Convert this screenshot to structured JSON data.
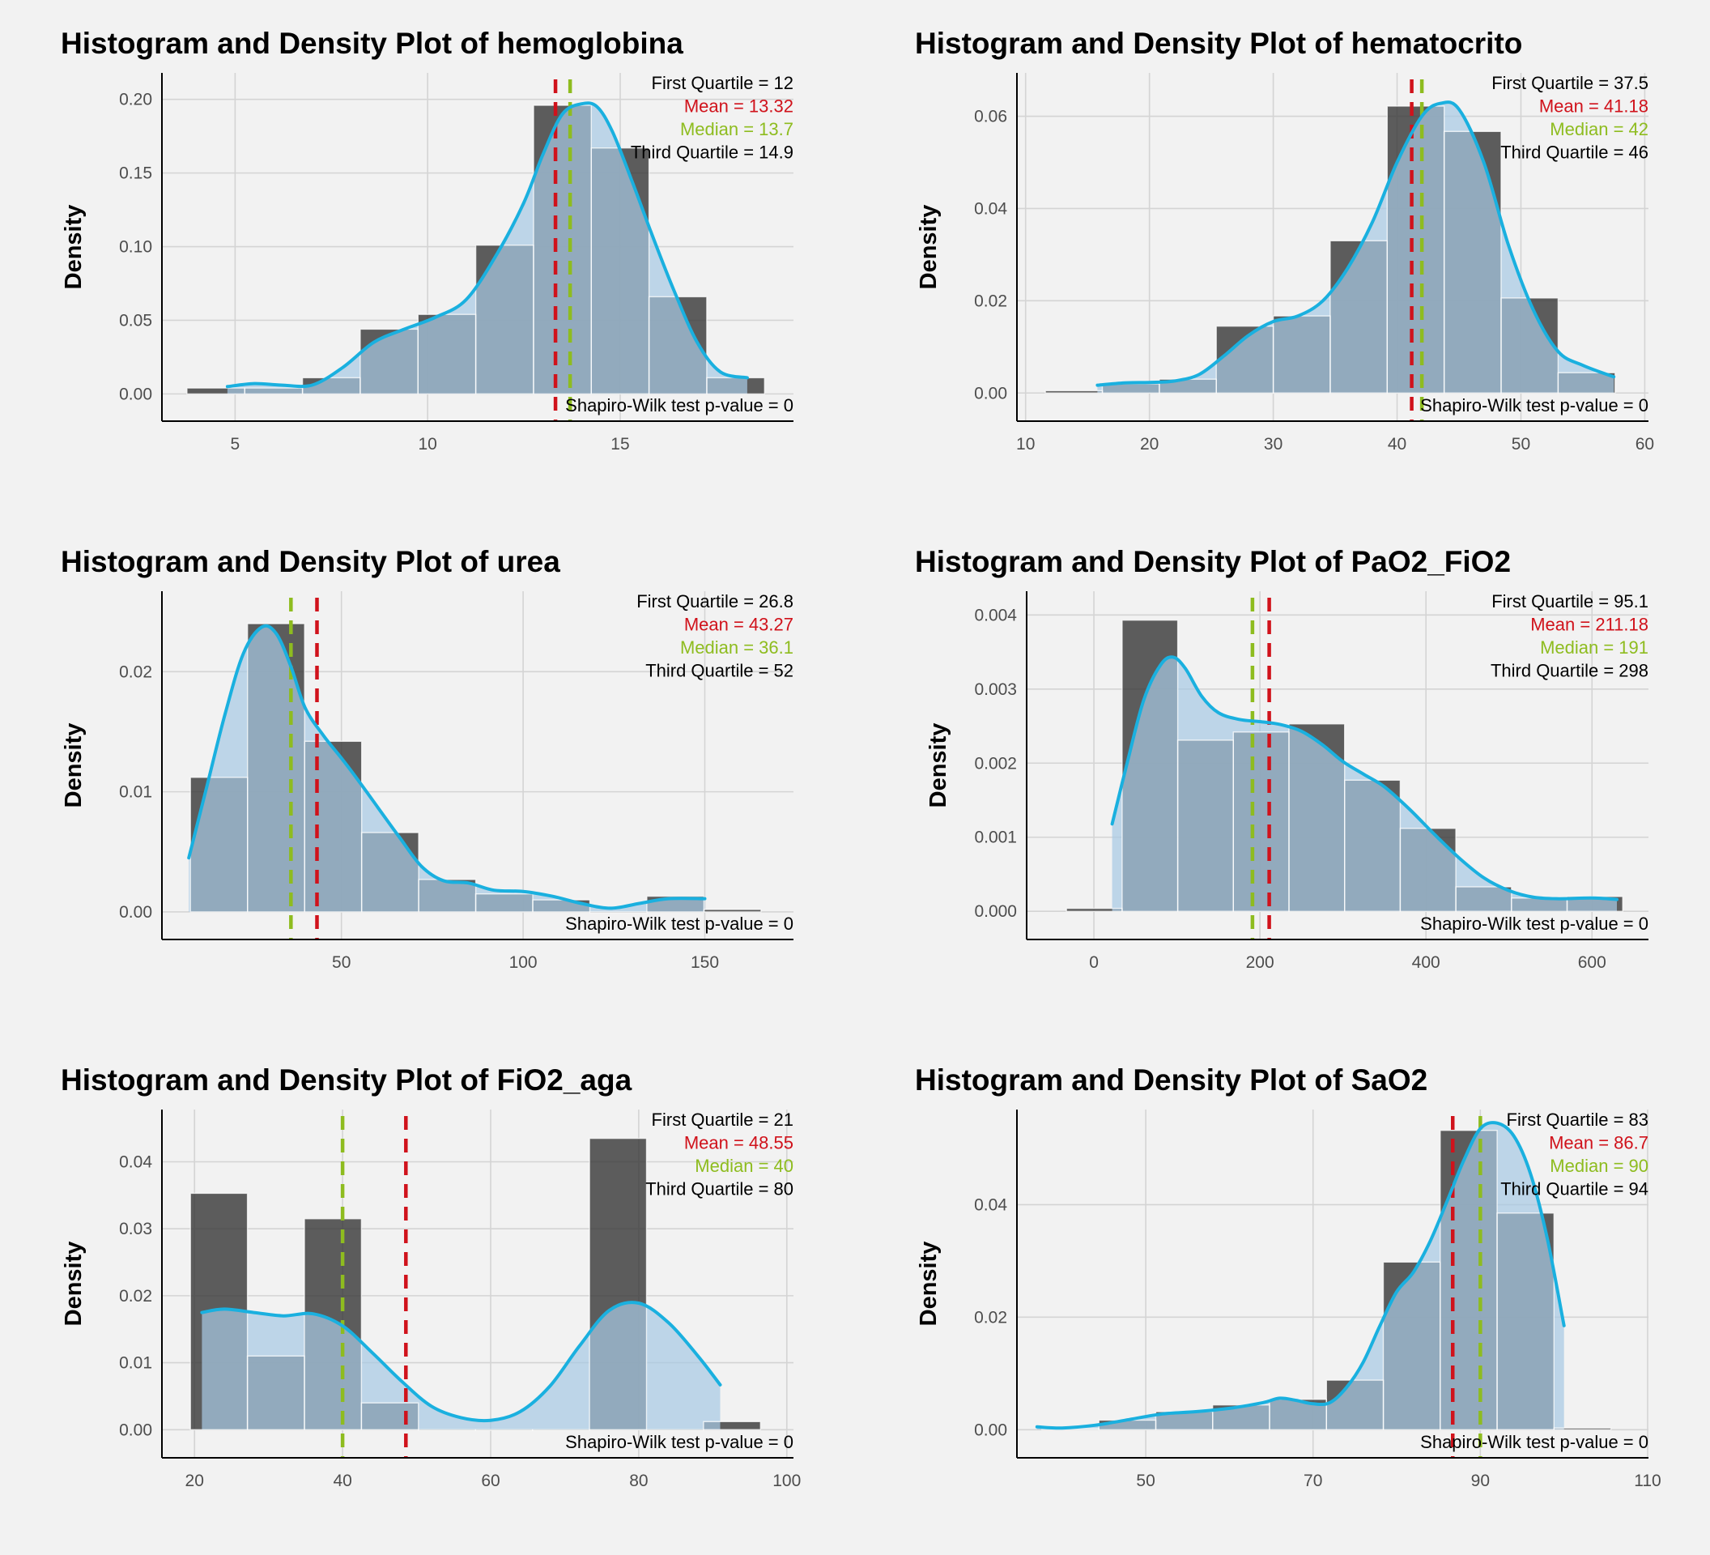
{
  "colors": {
    "background": "#f2f2f2",
    "histogram_bar": "#3a3a3a",
    "density_fill": "#a7c9e3",
    "density_line": "#1ab0df",
    "overlap": "#3d5c77",
    "mean": "#d0121b",
    "median": "#8ebc1f",
    "grid": "#d4d4d4"
  },
  "chart_data": [
    {
      "type": "histogram",
      "title": "Histogram and Density Plot of hemoglobina",
      "ylabel": "Density",
      "xlim": [
        3.1,
        19.5
      ],
      "ylim": [
        -0.0185,
        0.218
      ],
      "xticks": [
        5,
        10,
        15
      ],
      "yticks": [
        0.0,
        0.05,
        0.1,
        0.15,
        0.2
      ],
      "ytick_labels": [
        "0.00",
        "0.05",
        "0.10",
        "0.15",
        "0.20"
      ],
      "bin_width": 1.5,
      "bins": [
        {
          "x": 4.5,
          "y": 0.004
        },
        {
          "x": 6.0,
          "y": 0.004
        },
        {
          "x": 7.5,
          "y": 0.011
        },
        {
          "x": 9.0,
          "y": 0.044
        },
        {
          "x": 10.5,
          "y": 0.054
        },
        {
          "x": 12.0,
          "y": 0.101
        },
        {
          "x": 13.5,
          "y": 0.196
        },
        {
          "x": 15.0,
          "y": 0.167
        },
        {
          "x": 16.5,
          "y": 0.066
        },
        {
          "x": 18.0,
          "y": 0.011
        }
      ],
      "density": {
        "x": [
          4.8,
          5.5,
          6.2,
          7.0,
          7.8,
          8.6,
          9.4,
          10.2,
          11.0,
          11.8,
          12.5,
          13.0,
          13.5,
          14.0,
          14.4,
          14.8,
          15.3,
          15.8,
          16.4,
          17.0,
          17.6,
          18.3
        ],
        "y": [
          0.005,
          0.007,
          0.006,
          0.006,
          0.018,
          0.035,
          0.044,
          0.052,
          0.064,
          0.095,
          0.13,
          0.163,
          0.19,
          0.197,
          0.195,
          0.178,
          0.145,
          0.11,
          0.07,
          0.035,
          0.015,
          0.011
        ]
      },
      "stats": {
        "first_quartile": "First Quartile = 12",
        "mean": "Mean = 13.32",
        "median": "Median = 13.7",
        "third_quartile": "Third Quartile = 14.9",
        "shapiro": "Shapiro-Wilk test p-value = 0"
      },
      "mean_value": 13.32,
      "median_value": 13.7
    },
    {
      "type": "histogram",
      "title": "Histogram and Density Plot of hematocrito",
      "ylabel": "Density",
      "xlim": [
        9.3,
        60.3
      ],
      "ylim": [
        -0.0061,
        0.0694
      ],
      "xticks": [
        10,
        20,
        30,
        40,
        50,
        60
      ],
      "yticks": [
        0.0,
        0.02,
        0.04,
        0.06
      ],
      "ytick_labels": [
        "0.00",
        "0.02",
        "0.04",
        "0.06"
      ],
      "bin_width": 4.6,
      "bins": [
        {
          "x": 13.9,
          "y": 0.0005
        },
        {
          "x": 18.5,
          "y": 0.002
        },
        {
          "x": 23.1,
          "y": 0.003
        },
        {
          "x": 27.7,
          "y": 0.0145
        },
        {
          "x": 32.3,
          "y": 0.0167
        },
        {
          "x": 36.9,
          "y": 0.033
        },
        {
          "x": 41.5,
          "y": 0.0622
        },
        {
          "x": 46.1,
          "y": 0.0567
        },
        {
          "x": 50.7,
          "y": 0.0206
        },
        {
          "x": 55.3,
          "y": 0.0044
        }
      ],
      "density": {
        "x": [
          15.8,
          18,
          20,
          22,
          24,
          26,
          28,
          30,
          32,
          34,
          36,
          38,
          40,
          42,
          43.5,
          45,
          47,
          49,
          51,
          53,
          55,
          57.5
        ],
        "y": [
          0.0017,
          0.0022,
          0.0023,
          0.0026,
          0.004,
          0.008,
          0.0125,
          0.0155,
          0.0167,
          0.02,
          0.027,
          0.037,
          0.05,
          0.06,
          0.0628,
          0.0615,
          0.05,
          0.032,
          0.018,
          0.009,
          0.006,
          0.0035
        ]
      },
      "stats": {
        "first_quartile": "First Quartile = 37.5",
        "mean": "Mean = 41.18",
        "median": "Median = 42",
        "third_quartile": "Third Quartile = 46",
        "shapiro": "Shapiro-Wilk test p-value = 0"
      },
      "mean_value": 41.18,
      "median_value": 42
    },
    {
      "type": "histogram",
      "title": "Histogram and Density Plot of urea",
      "ylabel": "Density",
      "xlim": [
        0.6,
        174.4
      ],
      "ylim": [
        -0.0023,
        0.0267
      ],
      "xticks": [
        50,
        100,
        150
      ],
      "yticks": [
        0.0,
        0.01,
        0.02
      ],
      "ytick_labels": [
        "0.00",
        "0.01",
        "0.02"
      ],
      "bin_width": 15.7,
      "bins": [
        {
          "x": 16.3,
          "y": 0.0112
        },
        {
          "x": 32.0,
          "y": 0.024
        },
        {
          "x": 47.7,
          "y": 0.0142
        },
        {
          "x": 63.4,
          "y": 0.0066
        },
        {
          "x": 79.1,
          "y": 0.0027
        },
        {
          "x": 94.8,
          "y": 0.0015
        },
        {
          "x": 110.5,
          "y": 0.001
        },
        {
          "x": 126.2,
          "y": 0.0
        },
        {
          "x": 141.9,
          "y": 0.0013
        },
        {
          "x": 157.6,
          "y": 0.0002
        }
      ],
      "density": {
        "x": [
          8,
          13,
          18,
          23,
          28,
          32,
          36,
          40,
          45,
          50,
          55,
          60,
          66,
          72,
          78,
          85,
          92,
          100,
          108,
          116,
          124,
          132,
          140,
          150
        ],
        "y": [
          0.0045,
          0.0105,
          0.0165,
          0.0215,
          0.0237,
          0.0232,
          0.0205,
          0.017,
          0.0147,
          0.0128,
          0.0108,
          0.0087,
          0.0062,
          0.0038,
          0.0026,
          0.0024,
          0.0018,
          0.0017,
          0.0013,
          0.0007,
          0.0003,
          0.0007,
          0.0011,
          0.0011
        ]
      },
      "stats": {
        "first_quartile": "First Quartile = 26.8",
        "mean": "Mean = 43.27",
        "median": "Median = 36.1",
        "third_quartile": "Third Quartile = 52",
        "shapiro": "Shapiro-Wilk test p-value = 0"
      },
      "mean_value": 43.27,
      "median_value": 36.1
    },
    {
      "type": "histogram",
      "title": "Histogram and Density Plot of PaO2_FiO2",
      "ylabel": "Density",
      "xlim": [
        -81,
        668
      ],
      "ylim": [
        -0.00038,
        0.00432
      ],
      "xticks": [
        0,
        200,
        400,
        600
      ],
      "yticks": [
        0.0,
        0.001,
        0.002,
        0.003,
        0.004
      ],
      "ytick_labels": [
        "0.000",
        "0.001",
        "0.002",
        "0.003",
        "0.004"
      ],
      "bin_width": 67,
      "bins": [
        {
          "x": 0.5,
          "y": 4e-05
        },
        {
          "x": 67.5,
          "y": 0.00393
        },
        {
          "x": 134.5,
          "y": 0.00231
        },
        {
          "x": 201.5,
          "y": 0.00242
        },
        {
          "x": 268.5,
          "y": 0.00253
        },
        {
          "x": 335.5,
          "y": 0.00177
        },
        {
          "x": 402.5,
          "y": 0.00112
        },
        {
          "x": 469.5,
          "y": 0.00033
        },
        {
          "x": 536.5,
          "y": 0.00018
        },
        {
          "x": 603.5,
          "y": 0.0002
        }
      ],
      "density": {
        "x": [
          22,
          40,
          60,
          80,
          95,
          110,
          130,
          150,
          175,
          200,
          225,
          250,
          275,
          300,
          325,
          350,
          380,
          410,
          440,
          470,
          500,
          530,
          560,
          600,
          630
        ],
        "y": [
          0.00118,
          0.002,
          0.00285,
          0.00332,
          0.00343,
          0.00328,
          0.0029,
          0.00268,
          0.00259,
          0.00256,
          0.00252,
          0.00243,
          0.00225,
          0.00202,
          0.00185,
          0.00168,
          0.00138,
          0.00104,
          0.00072,
          0.00045,
          0.00028,
          0.00019,
          0.00017,
          0.00018,
          0.00016
        ]
      },
      "stats": {
        "first_quartile": "First Quartile = 95.1",
        "mean": "Mean = 211.18",
        "median": "Median = 191",
        "third_quartile": "Third Quartile = 298",
        "shapiro": "Shapiro-Wilk test p-value = 0"
      },
      "mean_value": 211.18,
      "median_value": 191
    },
    {
      "type": "histogram",
      "title": "Histogram and Density Plot of FiO2_aga",
      "ylabel": "Density",
      "xlim": [
        15.6,
        100.9
      ],
      "ylim": [
        -0.0042,
        0.0478
      ],
      "xticks": [
        20,
        40,
        60,
        80,
        100
      ],
      "yticks": [
        0.0,
        0.01,
        0.02,
        0.03,
        0.04
      ],
      "ytick_labels": [
        "0.00",
        "0.01",
        "0.02",
        "0.03",
        "0.04"
      ],
      "bin_width": 7.7,
      "bins": [
        {
          "x": 23.3,
          "y": 0.0353
        },
        {
          "x": 31.0,
          "y": 0.011
        },
        {
          "x": 38.7,
          "y": 0.0315
        },
        {
          "x": 46.4,
          "y": 0.004
        },
        {
          "x": 54.1,
          "y": 0.0
        },
        {
          "x": 61.8,
          "y": 0.0
        },
        {
          "x": 69.5,
          "y": 0.0
        },
        {
          "x": 77.2,
          "y": 0.0435
        },
        {
          "x": 84.9,
          "y": 0.0
        },
        {
          "x": 92.6,
          "y": 0.0012
        }
      ],
      "density": {
        "x": [
          21,
          24,
          28,
          32,
          36,
          40,
          44,
          48,
          52,
          56,
          60,
          64,
          68,
          72,
          76,
          80,
          84,
          88,
          91
        ],
        "y": [
          0.0175,
          0.018,
          0.0175,
          0.017,
          0.0173,
          0.0155,
          0.0115,
          0.0072,
          0.0035,
          0.0018,
          0.0014,
          0.0027,
          0.0065,
          0.0125,
          0.0178,
          0.0189,
          0.016,
          0.011,
          0.0067
        ]
      },
      "stats": {
        "first_quartile": "First Quartile = 21",
        "mean": "Mean = 48.55",
        "median": "Median = 40",
        "third_quartile": "Third Quartile = 80",
        "shapiro": "Shapiro-Wilk test p-value = 0"
      },
      "mean_value": 48.55,
      "median_value": 40
    },
    {
      "type": "histogram",
      "title": "Histogram and Density Plot of SaO2",
      "ylabel": "Density",
      "xlim": [
        34.6,
        110.1
      ],
      "ylim": [
        -0.005,
        0.0569
      ],
      "xticks": [
        50,
        70,
        90,
        110
      ],
      "yticks": [
        0.0,
        0.02,
        0.04
      ],
      "ytick_labels": [
        "0.00",
        "0.02",
        "0.04"
      ],
      "bin_width": 6.8,
      "bins": [
        {
          "x": 41.0,
          "y": 0.0002
        },
        {
          "x": 47.8,
          "y": 0.0017
        },
        {
          "x": 54.6,
          "y": 0.0032
        },
        {
          "x": 61.4,
          "y": 0.0044
        },
        {
          "x": 68.2,
          "y": 0.0054
        },
        {
          "x": 75.0,
          "y": 0.0088
        },
        {
          "x": 81.8,
          "y": 0.0298
        },
        {
          "x": 88.6,
          "y": 0.0532
        },
        {
          "x": 95.4,
          "y": 0.0385
        },
        {
          "x": 102.2,
          "y": 0.0003
        }
      ],
      "density": {
        "x": [
          37,
          40,
          44,
          48,
          52,
          56,
          60,
          64,
          66,
          68,
          70,
          72,
          74,
          76,
          78,
          80,
          82,
          84,
          86,
          88,
          90,
          92,
          94,
          96,
          98,
          100
        ],
        "y": [
          0.0005,
          0.0003,
          0.0008,
          0.0018,
          0.0028,
          0.0032,
          0.0038,
          0.0048,
          0.0056,
          0.0052,
          0.0046,
          0.0048,
          0.0075,
          0.012,
          0.0185,
          0.0245,
          0.028,
          0.0335,
          0.0405,
          0.0478,
          0.0535,
          0.0545,
          0.0522,
          0.0455,
          0.034,
          0.0185
        ]
      },
      "stats": {
        "first_quartile": "First Quartile = 83",
        "mean": "Mean = 86.7",
        "median": "Median = 90",
        "third_quartile": "Third Quartile = 94",
        "shapiro": "Shapiro-Wilk test p-value = 0"
      },
      "mean_value": 86.7,
      "median_value": 90
    }
  ]
}
